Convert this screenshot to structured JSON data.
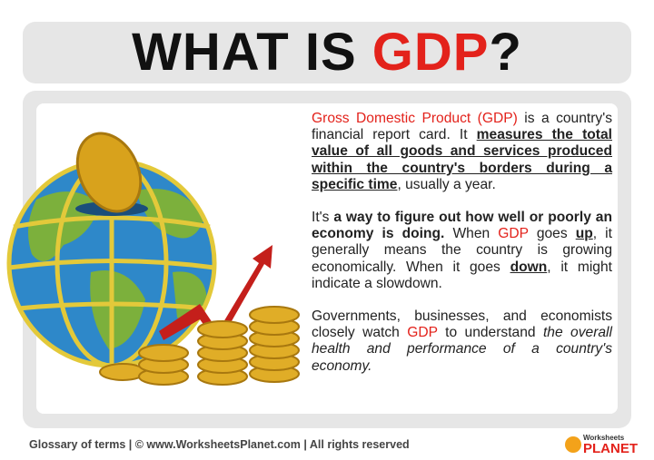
{
  "header": {
    "title": [
      {
        "text": "WHAT IS ",
        "color": "#111111"
      },
      {
        "text": "GDP",
        "color": "#e3221b"
      },
      {
        "text": "?",
        "color": "#111111"
      }
    ]
  },
  "content": {
    "paragraphs": [
      {
        "runs": [
          {
            "text": "Gross Domestic Product (GDP)",
            "color": "#e3221b"
          },
          {
            "text": " is a country's financial report card. It "
          },
          {
            "text": "measures the total value of all goods and services produced within the country's borders during a specific time",
            "bold": true,
            "underline": true
          },
          {
            "text": ", usually a year."
          }
        ]
      },
      {
        "runs": [
          {
            "text": "It's "
          },
          {
            "text": "a way to figure out how well or poorly an economy is doing.",
            "bold": true
          },
          {
            "text": " When "
          },
          {
            "text": "GDP",
            "color": "#e3221b"
          },
          {
            "text": " goes "
          },
          {
            "text": "up",
            "bold": true,
            "underline": true
          },
          {
            "text": ", it generally means the country is growing economically. When it goes "
          },
          {
            "text": "down",
            "bold": true,
            "underline": true
          },
          {
            "text": ", it might indicate a slowdown."
          }
        ]
      },
      {
        "runs": [
          {
            "text": "Governments, businesses, and economists closely watch "
          },
          {
            "text": "GDP",
            "color": "#e3221b"
          },
          {
            "text": " to understand "
          },
          {
            "text": "the overall health and performance of a country's economy.",
            "italic": true
          }
        ]
      }
    ]
  },
  "footer": {
    "text": "Glossary of terms | © www.WorksheetsPlanet.com | All rights reserved",
    "logo_top": "Worksheets",
    "logo_bottom": "PLANET"
  }
}
